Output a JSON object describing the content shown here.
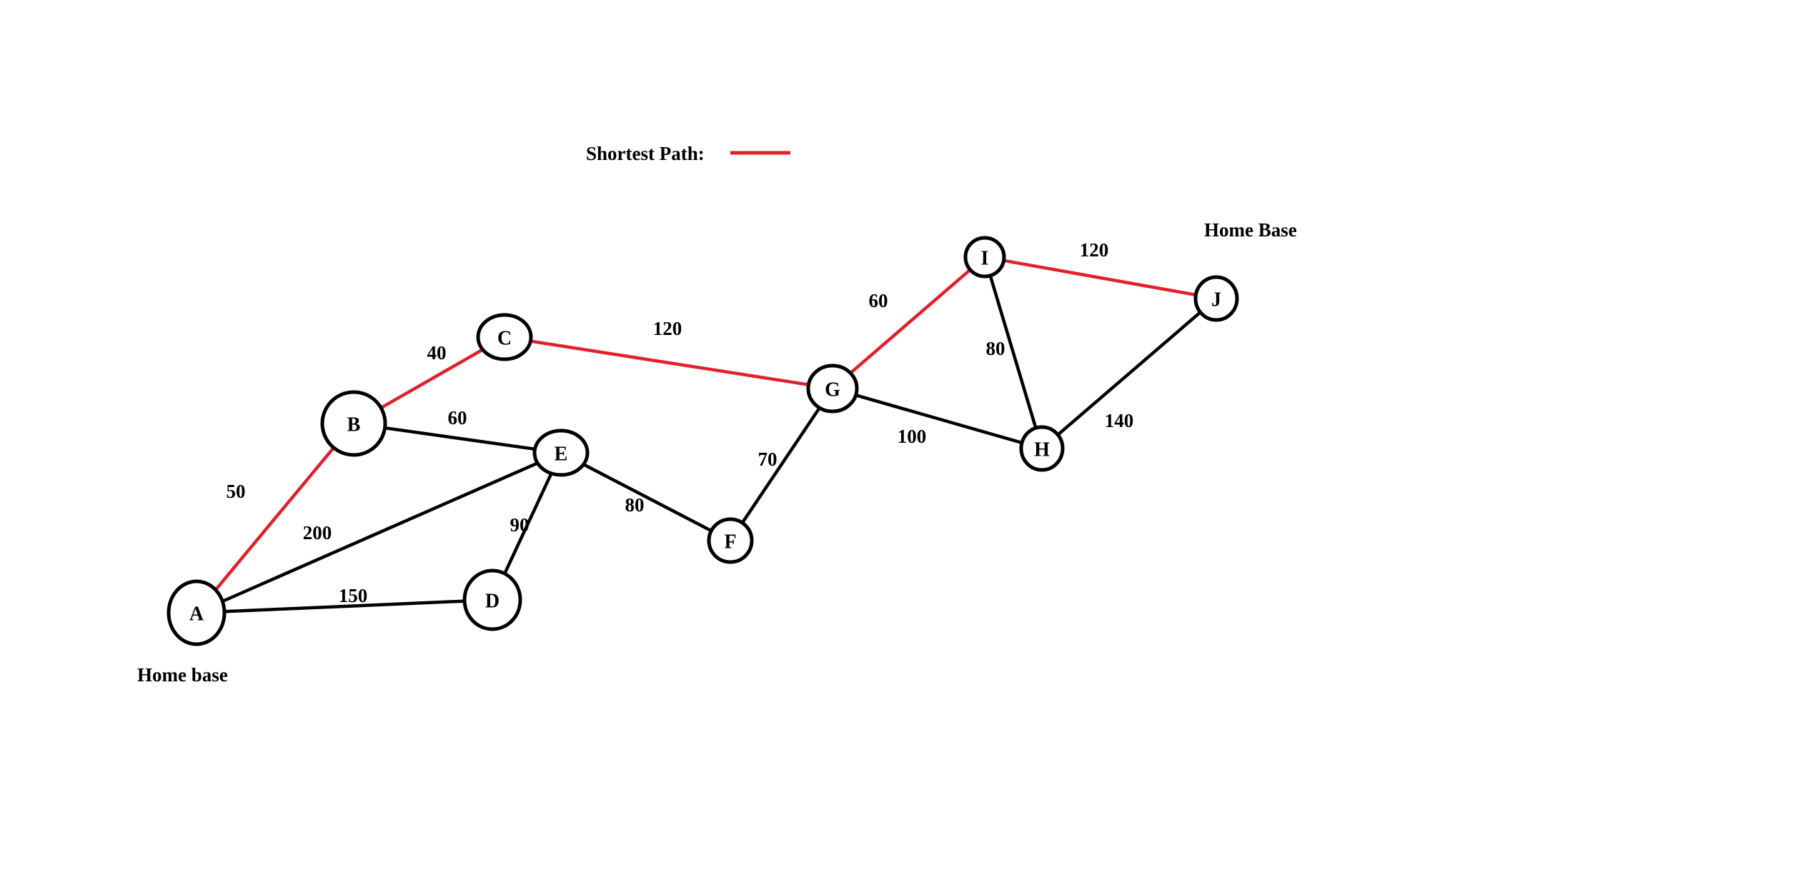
{
  "legend": {
    "label": "Shortest Path:",
    "color": "#e0202a"
  },
  "colors": {
    "default_edge": "#000000",
    "path_edge": "#e0202a"
  },
  "annotations": [
    {
      "id": "home-base-a",
      "text": "Home base"
    },
    {
      "id": "home-base-j",
      "text": "Home Base"
    }
  ],
  "nodes": [
    {
      "id": "A",
      "label": "A"
    },
    {
      "id": "B",
      "label": "B"
    },
    {
      "id": "C",
      "label": "C"
    },
    {
      "id": "D",
      "label": "D"
    },
    {
      "id": "E",
      "label": "E"
    },
    {
      "id": "F",
      "label": "F"
    },
    {
      "id": "G",
      "label": "G"
    },
    {
      "id": "H",
      "label": "H"
    },
    {
      "id": "I",
      "label": "I"
    },
    {
      "id": "J",
      "label": "J"
    }
  ],
  "edges": [
    {
      "from": "A",
      "to": "B",
      "weight": "50",
      "shortest_path": true
    },
    {
      "from": "A",
      "to": "E",
      "weight": "200",
      "shortest_path": false
    },
    {
      "from": "A",
      "to": "D",
      "weight": "150",
      "shortest_path": false
    },
    {
      "from": "B",
      "to": "C",
      "weight": "40",
      "shortest_path": true
    },
    {
      "from": "B",
      "to": "E",
      "weight": "60",
      "shortest_path": false
    },
    {
      "from": "E",
      "to": "D",
      "weight": "90",
      "shortest_path": false
    },
    {
      "from": "E",
      "to": "F",
      "weight": "80",
      "shortest_path": false
    },
    {
      "from": "C",
      "to": "G",
      "weight": "120",
      "shortest_path": true
    },
    {
      "from": "F",
      "to": "G",
      "weight": "70",
      "shortest_path": false
    },
    {
      "from": "G",
      "to": "I",
      "weight": "60",
      "shortest_path": true
    },
    {
      "from": "G",
      "to": "H",
      "weight": "100",
      "shortest_path": false
    },
    {
      "from": "I",
      "to": "H",
      "weight": "80",
      "shortest_path": false
    },
    {
      "from": "I",
      "to": "J",
      "weight": "120",
      "shortest_path": true
    },
    {
      "from": "H",
      "to": "J",
      "weight": "140",
      "shortest_path": false
    }
  ]
}
